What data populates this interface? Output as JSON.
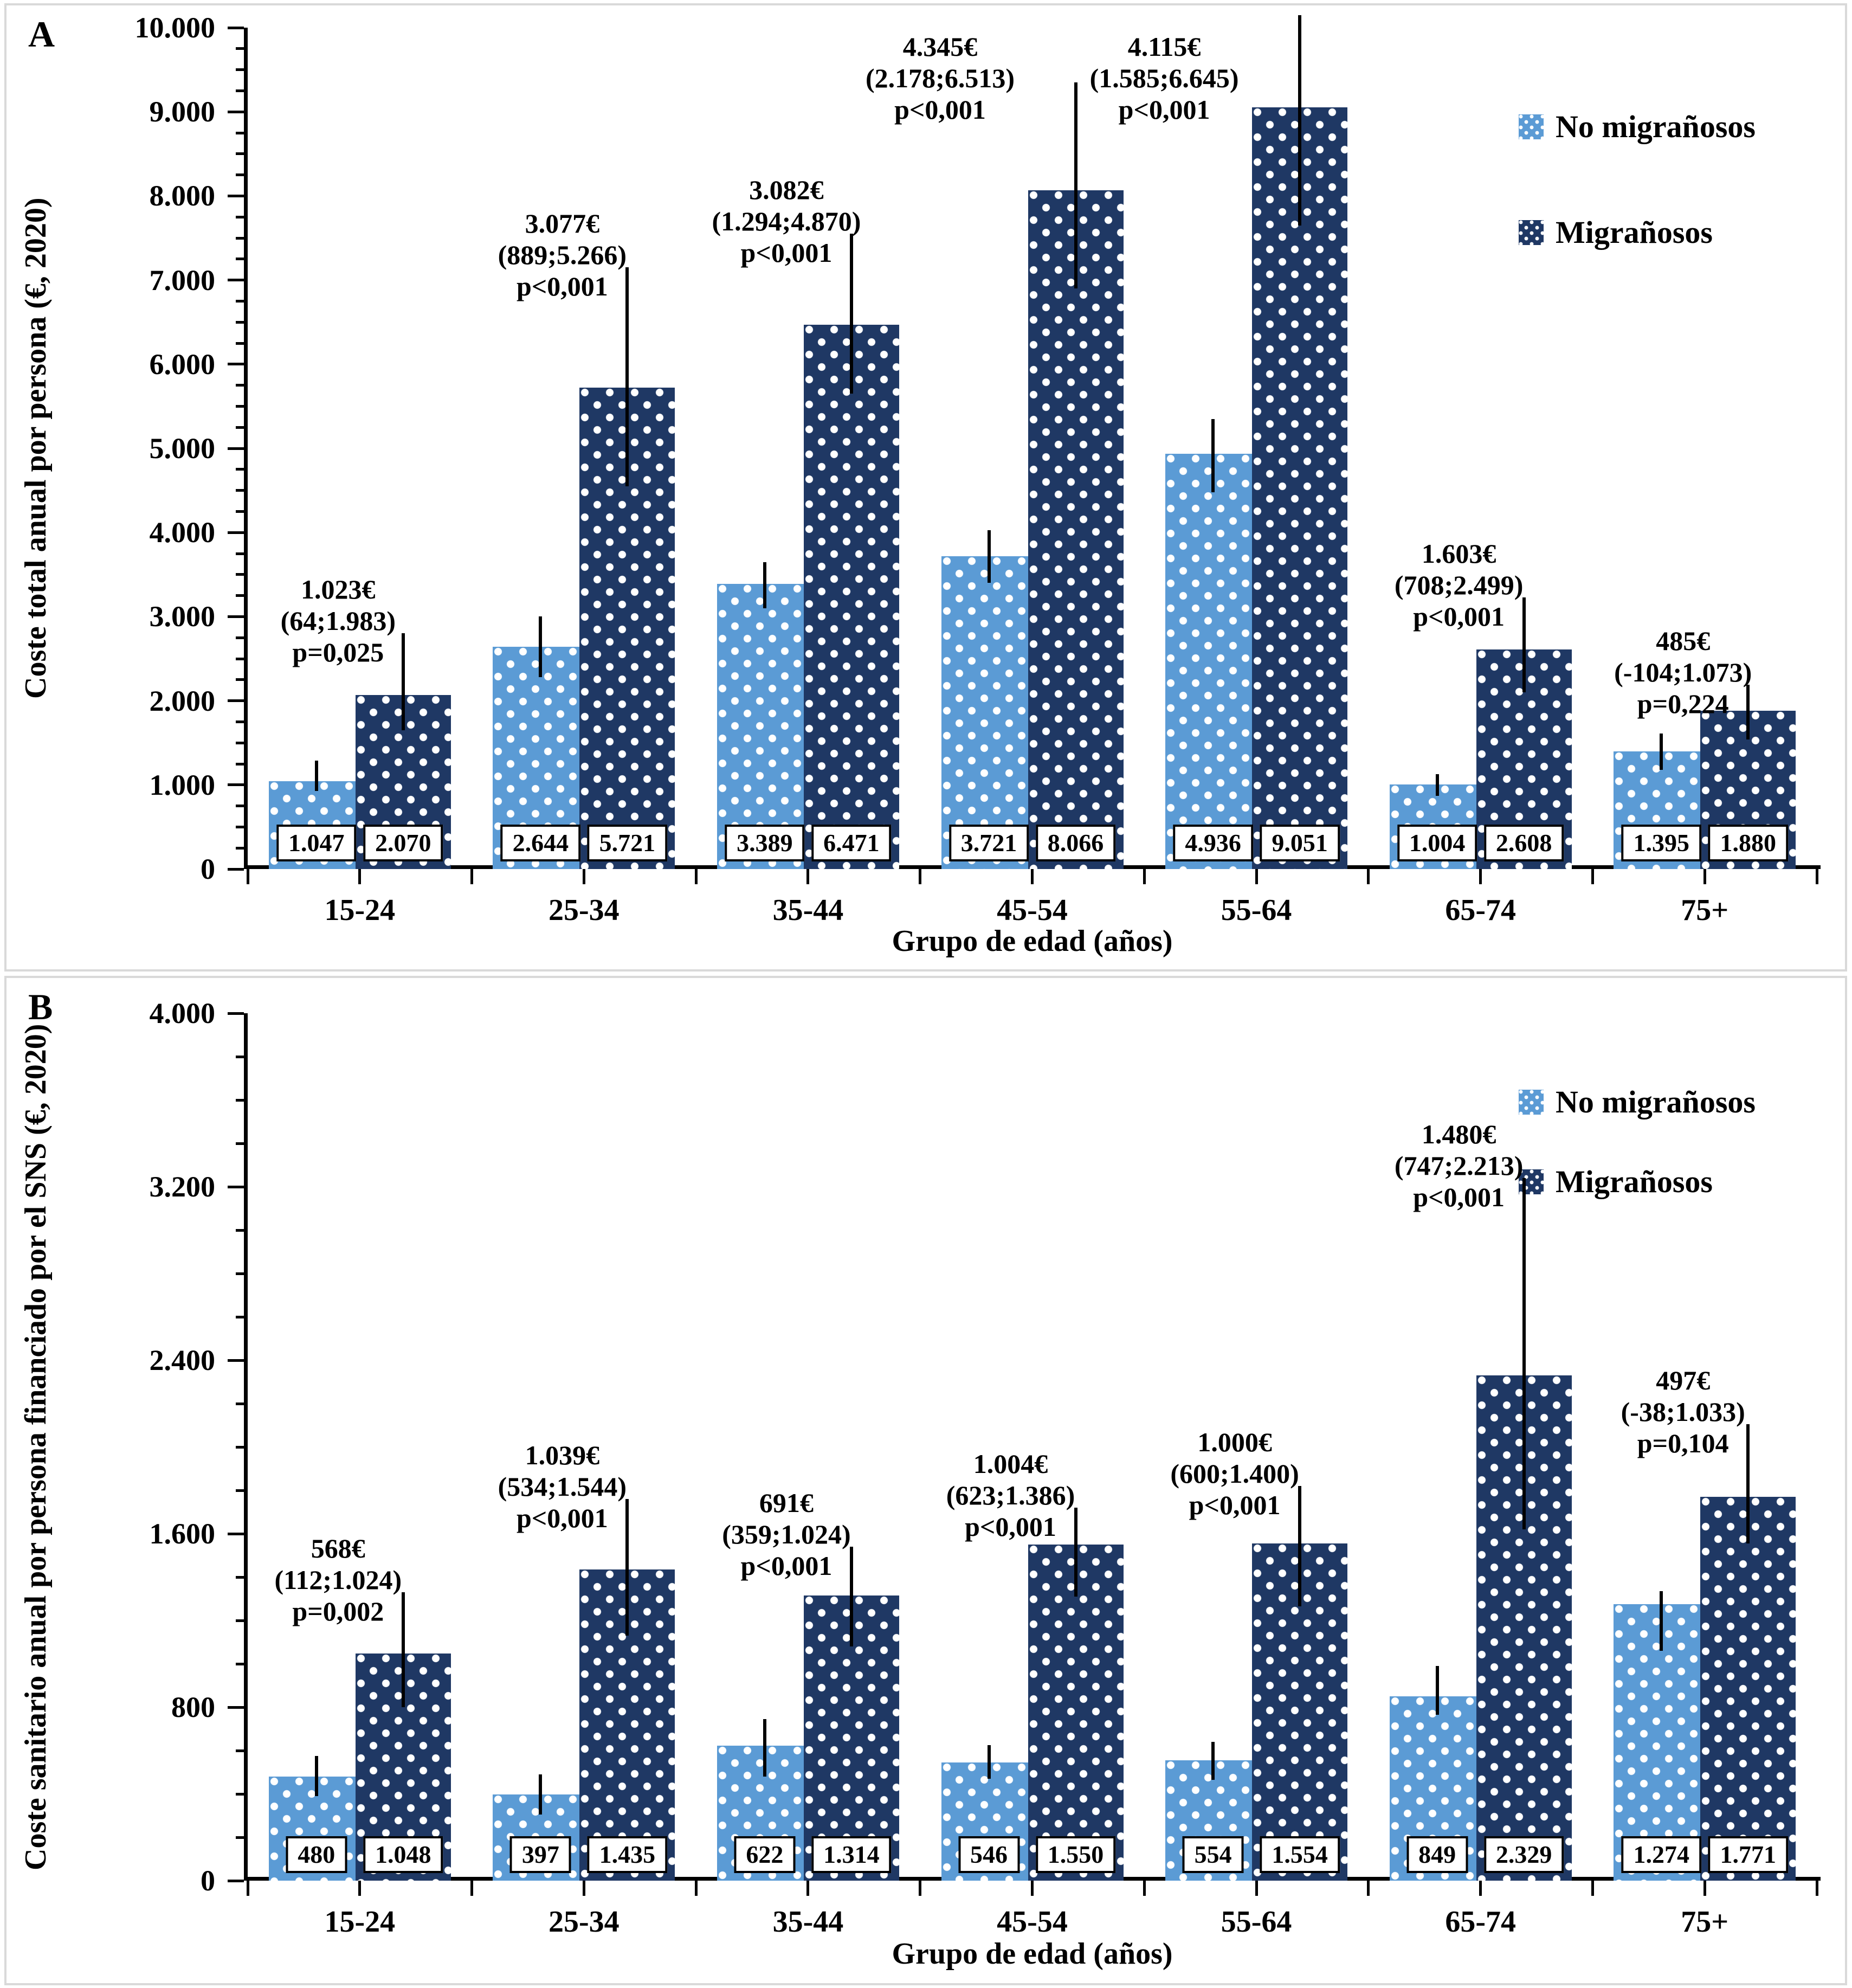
{
  "chart_data": [
    {
      "panel_label": "A",
      "type": "bar",
      "xlabel": "Grupo de edad (años)",
      "ylabel": "Coste total anual por persona (€, 2020)",
      "ylim": [
        0,
        10000
      ],
      "ytick_step": 1000,
      "yminor_step": 250,
      "ytick_labels": [
        "0",
        "1.000",
        "2.000",
        "3.000",
        "4.000",
        "5.000",
        "6.000",
        "7.000",
        "8.000",
        "9.000",
        "10.000"
      ],
      "categories": [
        "15-24",
        "25-34",
        "35-44",
        "45-54",
        "55-64",
        "65-74",
        "75+"
      ],
      "grid": "off",
      "legend_position": "top-right",
      "series": [
        {
          "name": "No migrañosos",
          "color": "#5B9BD5",
          "values": [
            1047,
            2644,
            3389,
            3721,
            4936,
            1004,
            1395
          ],
          "labels": [
            "1.047",
            "2.644",
            "3.389",
            "3.721",
            "4.936",
            "1.004",
            "1.395"
          ],
          "error_low": [
            930,
            2280,
            3100,
            3400,
            4480,
            870,
            1180
          ],
          "error_high": [
            1290,
            3000,
            3650,
            4030,
            5350,
            1130,
            1610
          ]
        },
        {
          "name": "Migrañosos",
          "color": "#1F3864",
          "values": [
            2070,
            5721,
            6471,
            8066,
            9051,
            2608,
            1880
          ],
          "labels": [
            "2.070",
            "5.721",
            "6.471",
            "8.066",
            "9.051",
            "2.608",
            "1.880"
          ],
          "error_low": [
            1650,
            4550,
            5650,
            6900,
            7650,
            2100,
            1540
          ],
          "error_high": [
            2800,
            7150,
            7550,
            9350,
            10150,
            3230,
            2190
          ]
        }
      ],
      "annotations": [
        [
          "1.023€",
          "(64;1.983)",
          "p=0,025"
        ],
        [
          "3.077€",
          "(889;5.266)",
          "p<0,001"
        ],
        [
          "3.082€",
          "(1.294;4.870)",
          "p<0,001"
        ],
        [
          "4.345€",
          "(2.178;6.513)",
          "p<0,001"
        ],
        [
          "4.115€",
          "(1.585;6.645)",
          "p<0,001"
        ],
        [
          "1.603€",
          "(708;2.499)",
          "p<0,001"
        ],
        [
          "485€",
          "(-104;1.073)",
          "p=0,224"
        ]
      ]
    },
    {
      "panel_label": "B",
      "type": "bar",
      "xlabel": "Grupo de edad (años)",
      "ylabel": "Coste sanitario anual por persona financiado por el SNS (€, 2020)",
      "ylim": [
        0,
        4000
      ],
      "ytick_step": 800,
      "yminor_step": 200,
      "ytick_labels": [
        "0",
        "800",
        "1.600",
        "2.400",
        "3.200",
        "4.000"
      ],
      "categories": [
        "15-24",
        "25-34",
        "35-44",
        "45-54",
        "55-64",
        "65-74",
        "75+"
      ],
      "grid": "off",
      "legend_position": "top-right",
      "series": [
        {
          "name": "No migrañosos",
          "color": "#5B9BD5",
          "values": [
            480,
            397,
            622,
            546,
            554,
            849,
            1274
          ],
          "labels": [
            "480",
            "397",
            "622",
            "546",
            "554",
            "849",
            "1.274"
          ],
          "error_low": [
            390,
            305,
            480,
            470,
            465,
            765,
            1060
          ],
          "error_high": [
            575,
            490,
            745,
            625,
            640,
            990,
            1335
          ]
        },
        {
          "name": "Migrañosos",
          "color": "#1F3864",
          "values": [
            1048,
            1435,
            1314,
            1550,
            1554,
            2329,
            1771
          ],
          "labels": [
            "1.048",
            "1.435",
            "1.314",
            "1.550",
            "1.554",
            "2.329",
            "1.771"
          ],
          "error_low": [
            800,
            1130,
            1080,
            1310,
            1265,
            1620,
            1555
          ],
          "error_high": [
            1330,
            1760,
            1540,
            1720,
            1820,
            3240,
            2105
          ]
        }
      ],
      "annotations": [
        [
          "568€",
          "(112;1.024)",
          "p=0,002"
        ],
        [
          "1.039€",
          "(534;1.544)",
          "p<0,001"
        ],
        [
          "691€",
          "(359;1.024)",
          "p<0,001"
        ],
        [
          "1.004€",
          "(623;1.386)",
          "p<0,001"
        ],
        [
          "1.000€",
          "(600;1.400)",
          "p<0,001"
        ],
        [
          "1.480€",
          "(747;2.213)",
          "p<0,001"
        ],
        [
          "497€",
          "(-38;1.033)",
          "p=0,104"
        ]
      ]
    }
  ]
}
